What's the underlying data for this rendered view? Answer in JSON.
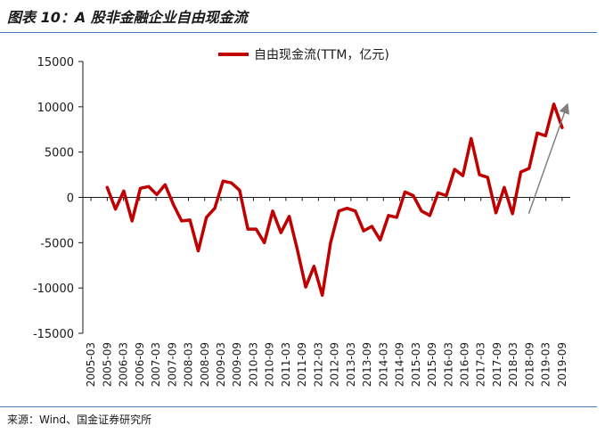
{
  "header": {
    "title": "图表 10：A 股非金融企业自由现金流"
  },
  "footer": {
    "source": "来源：Wind、国金证券研究所"
  },
  "chart_data": {
    "type": "line",
    "title": "",
    "xlabel": "",
    "ylabel": "",
    "ylim": [
      -15000,
      15000
    ],
    "yticks": [
      15000,
      10000,
      5000,
      0,
      -5000,
      -10000,
      -15000
    ],
    "ytick_labels": [
      "15000",
      "10000",
      "5000",
      "0",
      "-5000",
      "-10000",
      "-15000"
    ],
    "x_tick_labels": [
      "2005-03",
      "2005-09",
      "2006-03",
      "2006-09",
      "2007-03",
      "2007-09",
      "2008-03",
      "2008-09",
      "2009-03",
      "2009-09",
      "2010-03",
      "2010-09",
      "2011-03",
      "2011-09",
      "2012-03",
      "2012-09",
      "2013-03",
      "2013-09",
      "2014-03",
      "2014-09",
      "2015-03",
      "2015-09",
      "2016-03",
      "2016-09",
      "2017-03",
      "2017-09",
      "2018-03",
      "2018-09",
      "2019-03",
      "2019-09"
    ],
    "legend_position": "top-center",
    "series_color": "#c00000",
    "trend_arrow_color": "#808080",
    "series": [
      {
        "name": "自由现金流(TTM，亿元)",
        "values": [
          1100,
          -1300,
          700,
          -2600,
          1000,
          1200,
          300,
          1400,
          -800,
          -2600,
          -2500,
          -5900,
          -2200,
          -1200,
          1800,
          1600,
          800,
          -3500,
          -3500,
          -5000,
          -1500,
          -3900,
          -2100,
          -5800,
          -9900,
          -7600,
          -10800,
          -5000,
          -1500,
          -1200,
          -1500,
          -3700,
          -3200,
          -4700,
          -2000,
          -2200,
          600,
          200,
          -1500,
          -2000,
          500,
          200,
          3100,
          2400,
          6500,
          2500,
          2200,
          -1700,
          1100,
          -1800,
          2800,
          3200,
          7100,
          6800,
          10300,
          7700
        ]
      }
    ],
    "trend_arrow": {
      "from": [
        -1800
      ],
      "to": [
        10800
      ]
    }
  }
}
